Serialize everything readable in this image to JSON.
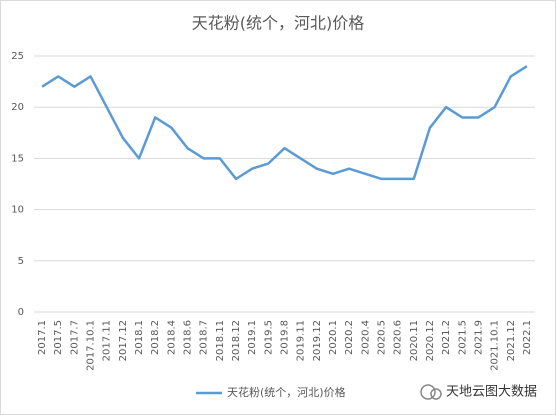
{
  "chart_data": {
    "type": "line",
    "title": "天花粉(统个，河北)价格",
    "categories": [
      "2017.1",
      "2017.5",
      "2017.7",
      "2017.10.1",
      "2017.11",
      "2017.12",
      "2018.1",
      "2018.2",
      "2018.4",
      "2018.6",
      "2018.7",
      "2018.11",
      "2018.12",
      "2019.1",
      "2019.5",
      "2019.8",
      "2019.11",
      "2019.12",
      "2020.1",
      "2020.2",
      "2020.4",
      "2020.5",
      "2020.6",
      "2020.11",
      "2020.12",
      "2021.2",
      "2021.5",
      "2021.9",
      "2021.10.1",
      "2021.12",
      "2022.1"
    ],
    "series": [
      {
        "name": "天花粉(统个，河北)价格",
        "color": "#5b9bd5",
        "values": [
          22,
          23,
          22,
          23,
          20,
          17,
          15,
          19,
          18,
          16,
          15,
          15,
          13,
          14,
          14.5,
          16,
          15,
          14,
          13.5,
          14,
          13.5,
          13,
          13,
          13,
          18,
          20,
          19,
          19,
          20,
          23,
          24
        ]
      }
    ],
    "ylim": [
      0,
      25
    ],
    "yticks": [
      0,
      5,
      10,
      15,
      20,
      25
    ],
    "grid": true,
    "legend": "bottom",
    "watermark": "天地云图大数据"
  }
}
